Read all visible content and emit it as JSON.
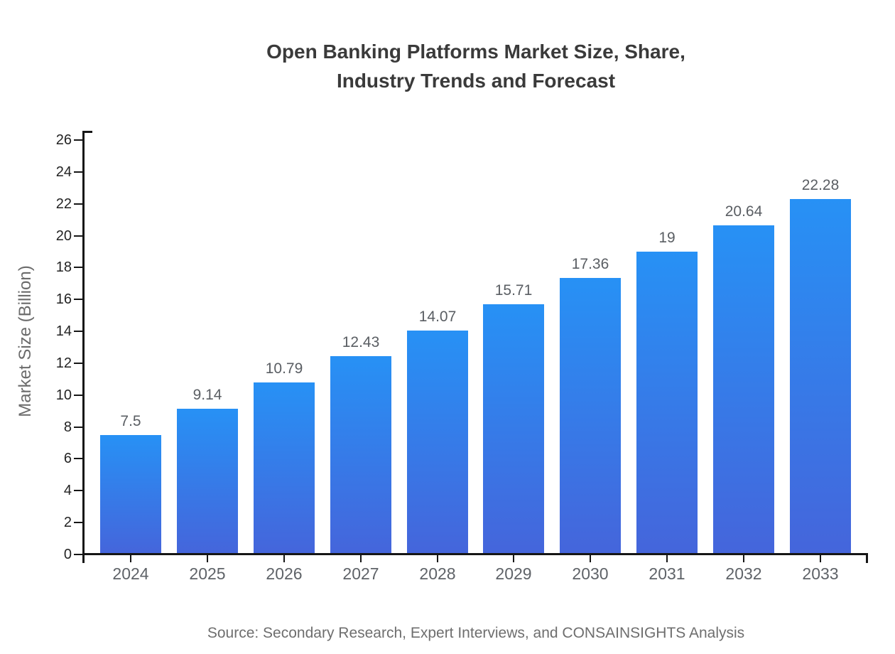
{
  "title": {
    "line1": "Open Banking Platforms Market Size, Share,",
    "line2": "Industry Trends and Forecast"
  },
  "source": "Source: Secondary Research, Expert Interviews, and CONSAINSIGHTS Analysis",
  "chart_data": {
    "type": "bar",
    "title": "Open Banking Platforms Market Size, Share, Industry Trends and Forecast",
    "categories": [
      "2024",
      "2025",
      "2026",
      "2027",
      "2028",
      "2029",
      "2030",
      "2031",
      "2032",
      "2033"
    ],
    "values": [
      7.5,
      9.14,
      10.79,
      12.43,
      14.07,
      15.71,
      17.36,
      19,
      20.64,
      22.28
    ],
    "value_labels": [
      "7.5",
      "9.14",
      "10.79",
      "12.43",
      "14.07",
      "15.71",
      "17.36",
      "19",
      "20.64",
      "22.28"
    ],
    "xlabel": "",
    "ylabel": "Market Size (Billion)",
    "ylim": [
      0,
      26
    ],
    "yticks": [
      0,
      2,
      4,
      6,
      8,
      10,
      12,
      14,
      16,
      18,
      20,
      22,
      24,
      26
    ],
    "grid": false,
    "legend": false,
    "colors": {
      "bar_top": "#2791f5",
      "bar_bottom": "#4565db",
      "axis": "#161616",
      "ytick_label": "#232323",
      "xtick_label": "#5f6368",
      "value_label": "#5a5e63",
      "title": "#3a3a3a",
      "ylabel": "#6b6b6b",
      "source": "#6e6e6e",
      "background": "#ffffff"
    }
  }
}
